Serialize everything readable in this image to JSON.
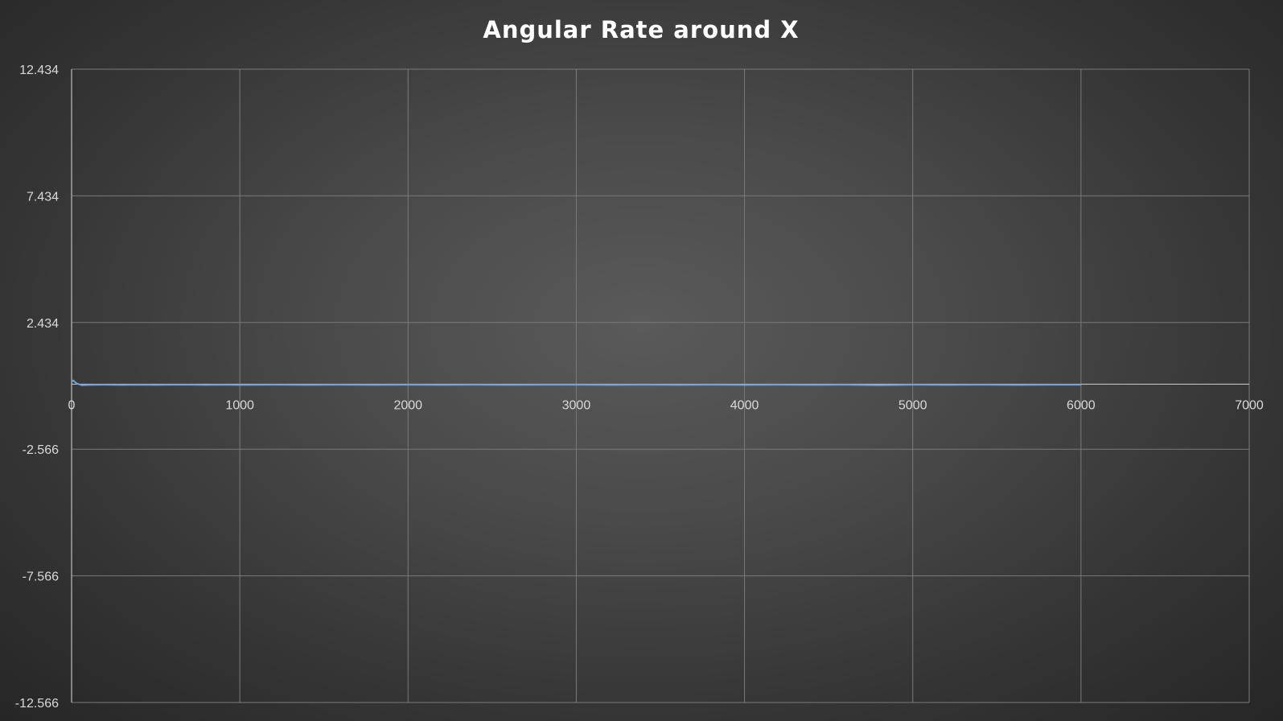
{
  "chart_data": {
    "type": "line",
    "title": "Angular Rate around X",
    "xlabel": "",
    "ylabel": "",
    "xlim": [
      0,
      7000
    ],
    "ylim": [
      -12.566,
      12.434
    ],
    "x_ticks": [
      "0",
      "1000",
      "2000",
      "3000",
      "4000",
      "5000",
      "6000",
      "7000"
    ],
    "x_tick_values": [
      0,
      1000,
      2000,
      3000,
      4000,
      5000,
      6000,
      7000
    ],
    "y_ticks": [
      "12.434",
      "7.434",
      "2.434",
      "-2.566",
      "-7.566",
      "-12.566"
    ],
    "y_tick_values": [
      12.434,
      7.434,
      2.434,
      -2.566,
      -7.566,
      -12.566
    ],
    "grid": true,
    "legend": "none",
    "series_color": "#6fa0d8",
    "series": [
      {
        "x": [
          0,
          10,
          30,
          60,
          100,
          200,
          300,
          400,
          500,
          600,
          700,
          800,
          900,
          1000,
          1200,
          1400,
          1600,
          1800,
          2000,
          2200,
          2400,
          2600,
          2800,
          3000,
          3200,
          3400,
          3600,
          3800,
          4000,
          4200,
          4400,
          4600,
          4800,
          5000,
          5200,
          5400,
          5600,
          5800,
          6000
        ],
        "y": [
          0.1,
          0.15,
          0.03,
          -0.04,
          -0.03,
          -0.02,
          -0.03,
          -0.02,
          -0.03,
          -0.02,
          -0.02,
          -0.03,
          -0.02,
          -0.03,
          -0.02,
          -0.03,
          -0.02,
          -0.03,
          -0.02,
          -0.03,
          -0.02,
          -0.03,
          -0.02,
          -0.02,
          -0.03,
          -0.02,
          -0.03,
          -0.02,
          -0.03,
          -0.02,
          -0.03,
          -0.02,
          -0.04,
          -0.02,
          -0.03,
          -0.02,
          -0.03,
          -0.02,
          -0.02
        ]
      }
    ]
  }
}
